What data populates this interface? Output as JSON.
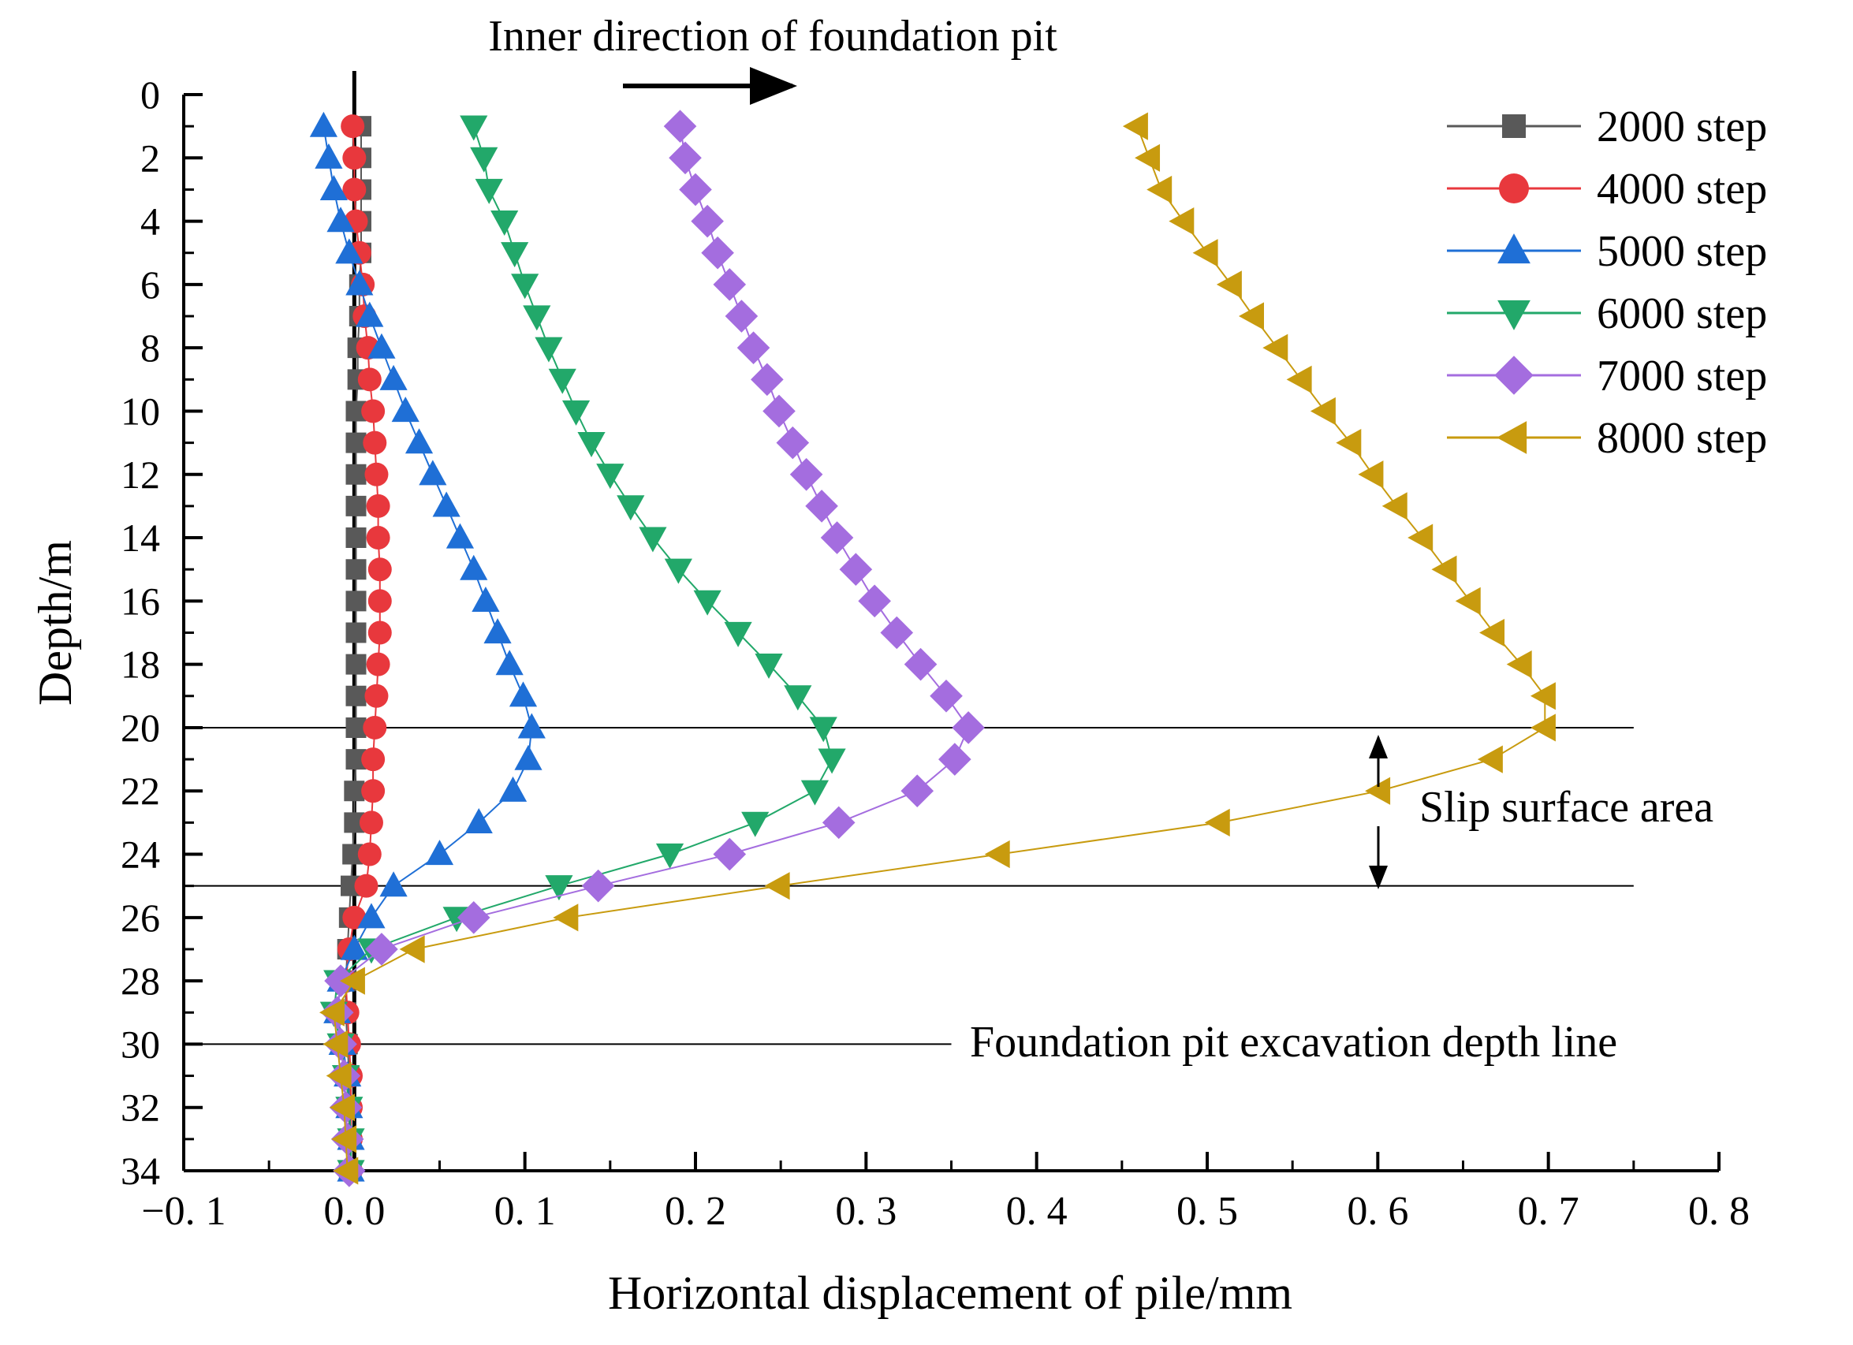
{
  "chart_data": {
    "type": "line",
    "title": "",
    "xlabel": "Horizontal displacement of pile/mm",
    "ylabel": "Depth/m",
    "xlim": [
      -0.1,
      0.8
    ],
    "ylim": [
      34,
      0
    ],
    "y_inverted": true,
    "grid": false,
    "legend_position": "top-right",
    "x_ticks": [
      -0.1,
      0.0,
      0.1,
      0.2,
      0.3,
      0.4,
      0.5,
      0.6,
      0.7,
      0.8
    ],
    "x_tick_labels": [
      "−0. 1",
      "0. 0",
      "0. 1",
      "0. 2",
      "0. 3",
      "0. 4",
      "0. 5",
      "0. 6",
      "0. 7",
      "0. 8"
    ],
    "y_ticks": [
      0,
      2,
      4,
      6,
      8,
      10,
      12,
      14,
      16,
      18,
      20,
      22,
      24,
      26,
      28,
      30,
      32,
      34
    ],
    "y_tick_labels": [
      "0",
      "2",
      "4",
      "6",
      "8",
      "10",
      "12",
      "14",
      "16",
      "18",
      "20",
      "22",
      "24",
      "26",
      "28",
      "30",
      "32",
      "34"
    ],
    "depth": [
      1,
      2,
      3,
      4,
      5,
      6,
      7,
      8,
      9,
      10,
      11,
      12,
      13,
      14,
      15,
      16,
      17,
      18,
      19,
      20,
      21,
      22,
      23,
      24,
      25,
      26,
      27,
      28,
      29,
      30,
      31,
      32,
      33,
      34
    ],
    "series": [
      {
        "name": "2000 step",
        "color": "#595959",
        "marker": "square",
        "values": [
          0.004,
          0.004,
          0.004,
          0.004,
          0.004,
          0.003,
          0.003,
          0.002,
          0.002,
          0.001,
          0.001,
          0.001,
          0.001,
          0.001,
          0.001,
          0.001,
          0.001,
          0.001,
          0.001,
          0.001,
          0.001,
          0.0,
          0.0,
          -0.001,
          -0.002,
          -0.003,
          -0.004,
          -0.005,
          -0.005,
          -0.004,
          -0.003,
          -0.003,
          -0.003,
          -0.003
        ]
      },
      {
        "name": "4000 step",
        "color": "#e8383d",
        "marker": "circle",
        "values": [
          -0.001,
          0.0,
          0.0,
          0.001,
          0.003,
          0.005,
          0.006,
          0.008,
          0.009,
          0.011,
          0.012,
          0.013,
          0.014,
          0.014,
          0.015,
          0.015,
          0.015,
          0.014,
          0.013,
          0.012,
          0.011,
          0.011,
          0.01,
          0.009,
          0.007,
          0.0,
          -0.003,
          -0.005,
          -0.004,
          -0.003,
          -0.002,
          -0.002,
          -0.002,
          -0.002
        ]
      },
      {
        "name": "5000 step",
        "color": "#1f6fd6",
        "marker": "triangle-up",
        "values": [
          -0.018,
          -0.015,
          -0.012,
          -0.008,
          -0.003,
          0.003,
          0.009,
          0.016,
          0.023,
          0.03,
          0.038,
          0.046,
          0.054,
          0.062,
          0.07,
          0.077,
          0.084,
          0.091,
          0.099,
          0.104,
          0.102,
          0.093,
          0.073,
          0.05,
          0.023,
          0.01,
          0.0,
          -0.008,
          -0.01,
          -0.007,
          -0.004,
          -0.003,
          -0.002,
          -0.002
        ]
      },
      {
        "name": "6000 step",
        "color": "#22a86a",
        "marker": "triangle-down",
        "values": [
          0.07,
          0.076,
          0.079,
          0.088,
          0.094,
          0.1,
          0.107,
          0.114,
          0.122,
          0.13,
          0.139,
          0.15,
          0.162,
          0.175,
          0.19,
          0.207,
          0.225,
          0.243,
          0.26,
          0.275,
          0.28,
          0.27,
          0.235,
          0.185,
          0.12,
          0.06,
          0.01,
          -0.01,
          -0.012,
          -0.008,
          -0.005,
          -0.003,
          -0.002,
          -0.002
        ]
      },
      {
        "name": "7000 step",
        "color": "#a46ddf",
        "marker": "diamond",
        "values": [
          0.191,
          0.194,
          0.2,
          0.207,
          0.213,
          0.22,
          0.227,
          0.234,
          0.242,
          0.249,
          0.257,
          0.265,
          0.274,
          0.283,
          0.294,
          0.305,
          0.318,
          0.332,
          0.347,
          0.36,
          0.352,
          0.33,
          0.284,
          0.22,
          0.143,
          0.07,
          0.016,
          -0.008,
          -0.01,
          -0.008,
          -0.006,
          -0.005,
          -0.004,
          -0.003
        ]
      },
      {
        "name": "8000 step",
        "color": "#c89b0f",
        "marker": "triangle-left",
        "values": [
          0.459,
          0.466,
          0.473,
          0.486,
          0.5,
          0.514,
          0.527,
          0.541,
          0.555,
          0.569,
          0.584,
          0.597,
          0.611,
          0.626,
          0.64,
          0.654,
          0.668,
          0.684,
          0.698,
          0.698,
          0.667,
          0.601,
          0.507,
          0.378,
          0.249,
          0.125,
          0.035,
          0.0,
          -0.012,
          -0.01,
          -0.008,
          -0.006,
          -0.005,
          -0.004
        ]
      }
    ],
    "reference_lines": [
      {
        "name": "slip-top-line",
        "depth": 20,
        "x_end": 0.75
      },
      {
        "name": "slip-bottom-line",
        "depth": 25,
        "x_end": 0.75
      },
      {
        "name": "excavation-depth-line",
        "depth": 30,
        "x_end": 0.35
      }
    ],
    "annotations": {
      "top_arrow_text": "Inner direction of foundation pit",
      "slip_text": "Slip surface area",
      "excavation_text": "Foundation pit excavation depth line"
    }
  }
}
